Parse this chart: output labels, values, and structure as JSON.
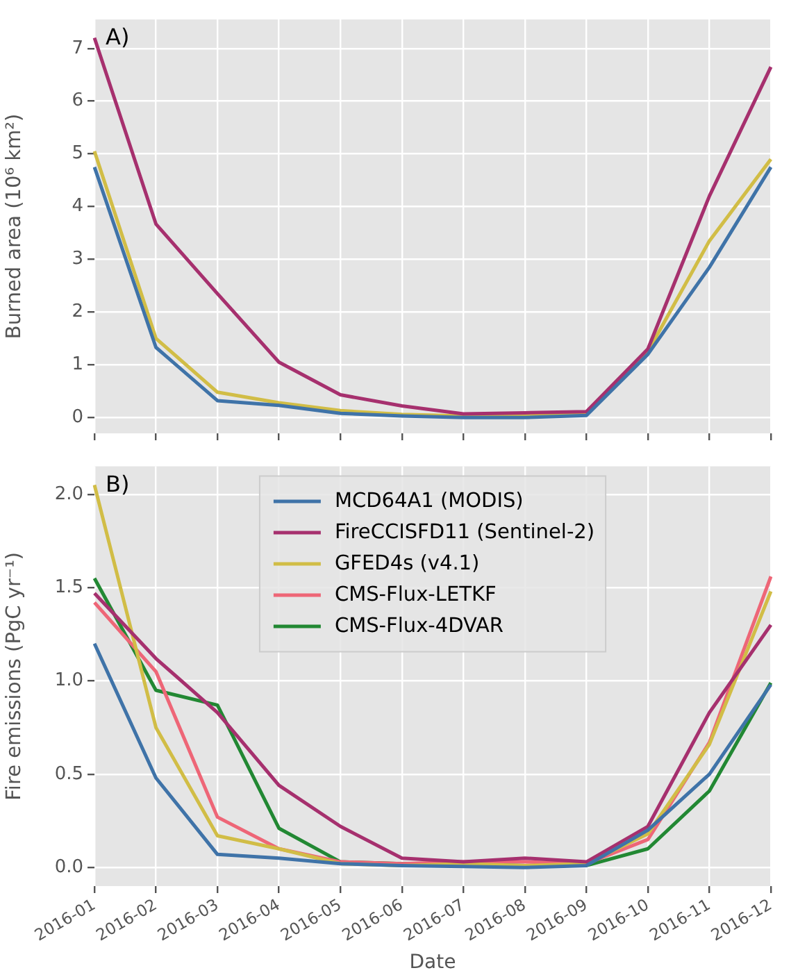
{
  "chart_data": [
    {
      "type": "line",
      "ylabel": "Burned area (10⁶ km²)",
      "annotations": [
        "A)"
      ],
      "categories": [
        "2016-01",
        "2016-02",
        "2016-03",
        "2016-04",
        "2016-05",
        "2016-06",
        "2016-07",
        "2016-08",
        "2016-09",
        "2016-10",
        "2016-11",
        "2016-12"
      ],
      "series": [
        {
          "color": "#3f73a8",
          "values": [
            4.75,
            1.33,
            0.32,
            0.23,
            0.08,
            0.03,
            0.0,
            0.0,
            0.04,
            1.2,
            2.85,
            4.75
          ]
        },
        {
          "color": "#a6306e",
          "values": [
            7.2,
            3.67,
            2.35,
            1.05,
            0.43,
            0.22,
            0.07,
            0.09,
            0.11,
            1.3,
            4.2,
            6.65
          ]
        },
        {
          "color": "#d1bd46",
          "values": [
            5.05,
            1.5,
            0.48,
            0.28,
            0.13,
            0.06,
            0.03,
            0.03,
            0.08,
            1.25,
            3.35,
            4.9
          ]
        }
      ],
      "ylim": [
        -0.3,
        7.55
      ],
      "yticks": [
        0,
        1,
        2,
        3,
        4,
        5,
        6,
        7
      ],
      "grid": true,
      "tick_labels": "y"
    },
    {
      "type": "line",
      "xlabel": "Date",
      "ylabel": "Fire emissions (PgC yr⁻¹)",
      "annotations": [
        "B)"
      ],
      "categories": [
        "2016-01",
        "2016-02",
        "2016-03",
        "2016-04",
        "2016-05",
        "2016-06",
        "2016-07",
        "2016-08",
        "2016-09",
        "2016-10",
        "2016-11",
        "2016-12"
      ],
      "series": [
        {
          "name": "MCD64A1 (MODIS)",
          "color": "#3f73a8",
          "values": [
            1.2,
            0.48,
            0.07,
            0.05,
            0.02,
            0.01,
            0.005,
            0.0,
            0.01,
            0.2,
            0.5,
            0.98
          ]
        },
        {
          "name": "FireCCISFD11 (Sentinel-2)",
          "color": "#a6306e",
          "values": [
            1.47,
            1.12,
            0.83,
            0.44,
            0.22,
            0.05,
            0.03,
            0.05,
            0.03,
            0.22,
            0.83,
            1.3
          ]
        },
        {
          "name": "GFED4s (v4.1)",
          "color": "#d1bd46",
          "values": [
            2.05,
            0.75,
            0.17,
            0.1,
            0.02,
            0.01,
            0.02,
            0.01,
            0.02,
            0.18,
            0.66,
            1.48
          ]
        },
        {
          "name": "CMS-Flux-LETKF",
          "color": "#ee6677",
          "values": [
            1.42,
            1.05,
            0.27,
            0.1,
            0.03,
            0.02,
            0.03,
            0.03,
            0.02,
            0.15,
            0.67,
            1.56
          ]
        },
        {
          "name": "CMS-Flux-4DVAR",
          "color": "#228833",
          "values": [
            1.55,
            0.95,
            0.87,
            0.21,
            0.03,
            0.02,
            0.02,
            0.01,
            0.01,
            0.1,
            0.41,
            0.99
          ]
        }
      ],
      "ylim": [
        -0.1,
        2.15
      ],
      "yticks": [
        {
          "value": 0,
          "label": "0.0"
        },
        {
          "value": 0.5,
          "label": "0.5"
        },
        {
          "value": 1,
          "label": "1.0"
        },
        {
          "value": 1.5,
          "label": "1.5"
        },
        {
          "value": 2,
          "label": "2.0"
        }
      ],
      "grid": true,
      "legend": "top"
    }
  ]
}
